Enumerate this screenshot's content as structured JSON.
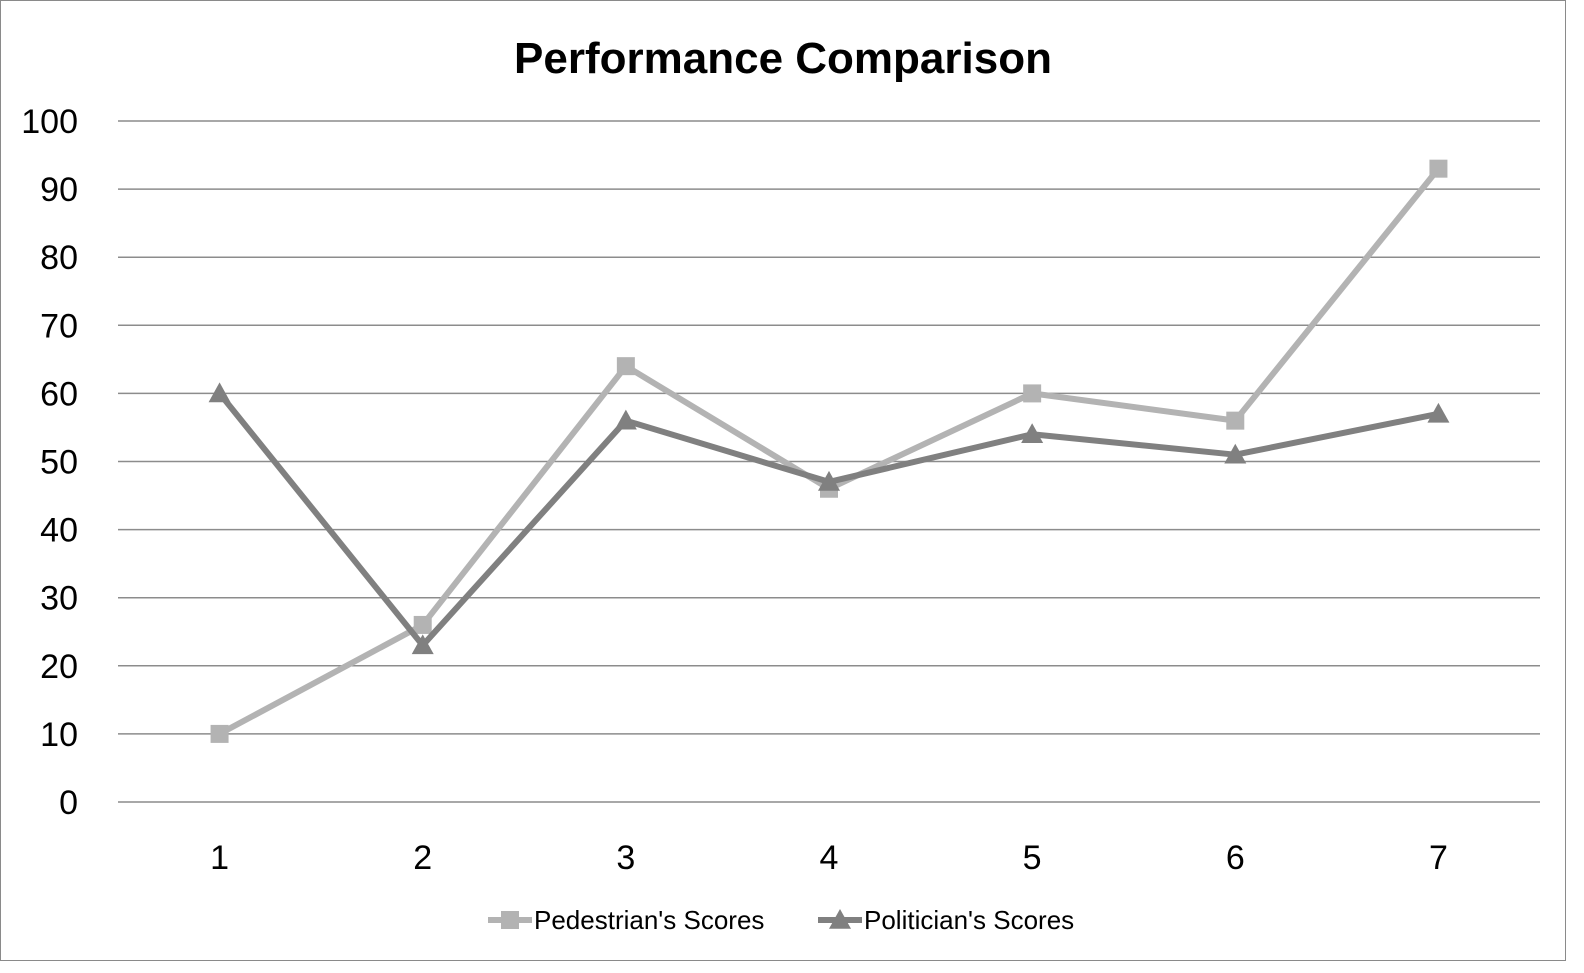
{
  "chart_data": {
    "type": "line",
    "title": "Performance Comparison",
    "xlabel": "",
    "ylabel": "",
    "categories": [
      "1",
      "2",
      "3",
      "4",
      "5",
      "6",
      "7"
    ],
    "ylim": [
      0,
      100
    ],
    "yticks": [
      0,
      10,
      20,
      30,
      40,
      50,
      60,
      70,
      80,
      90,
      100
    ],
    "grid": true,
    "legend_position": "bottom",
    "series": [
      {
        "name": "Pedestrian's Scores",
        "marker": "square",
        "color": "#b3b3b3",
        "values": [
          10,
          26,
          64,
          46,
          60,
          56,
          93
        ]
      },
      {
        "name": "Politician's Scores",
        "marker": "triangle",
        "color": "#808080",
        "values": [
          60,
          23,
          56,
          47,
          54,
          51,
          57
        ]
      }
    ]
  }
}
